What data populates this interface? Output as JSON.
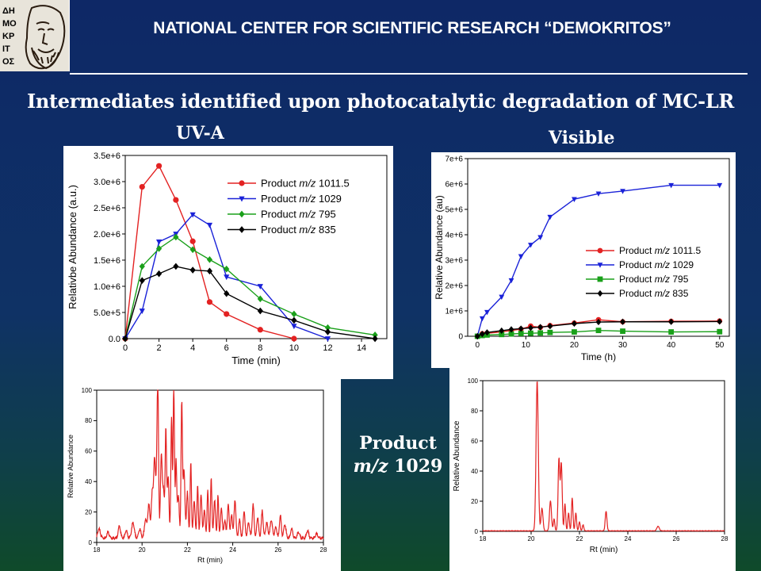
{
  "header": {
    "title": "NATIONAL CENTER FOR SCIENTIFIC RESEARCH “DEMOKRITOS”",
    "logo_text": "ΔΗΜΟΚΡΙΤΟΣ"
  },
  "slide": {
    "title": "Intermediates identified upon photocatalytic degradation of MC-LR",
    "label_uva": "UV-A",
    "label_visible": "Visible",
    "product_label_line1": "Product",
    "product_label_line2_prefix": "m/z",
    "product_label_line2_value": "1029"
  },
  "chart_data": [
    {
      "type": "line",
      "panel": "UV-A",
      "xlabel": "Time (min)",
      "ylabel": "Relativbe Abundance (a.u.)",
      "xlim": [
        0,
        15.5
      ],
      "ylim": [
        0,
        3500000
      ],
      "xticks": [
        0,
        2,
        4,
        6,
        8,
        10,
        12,
        14
      ],
      "xtick_labels": [
        "0",
        "2",
        "4",
        "6",
        "8",
        "10",
        "12",
        "14"
      ],
      "yticks": [
        0,
        500000,
        1000000,
        1500000,
        2000000,
        2500000,
        3000000,
        3500000
      ],
      "ytick_labels": [
        "0.0",
        "5.0e+5",
        "1.0e+6",
        "1.5e+6",
        "2.0e+6",
        "2.5e+6",
        "3.0e+6",
        "3.5e+6"
      ],
      "legend_position": "top-right",
      "series": [
        {
          "name_prefix": "Product ",
          "name_italic": "m/z",
          "name_suffix": " 1011.5",
          "color": "#e32222",
          "marker": "circle",
          "x": [
            0,
            1,
            2,
            3,
            4,
            5,
            6,
            8,
            10
          ],
          "y": [
            0,
            2900000,
            3300000,
            2650000,
            1860000,
            700000,
            470000,
            170000,
            0
          ]
        },
        {
          "name_prefix": "Product ",
          "name_italic": "m/z",
          "name_suffix": " 1029",
          "color": "#1a22d8",
          "marker": "triangle-down",
          "x": [
            0,
            1,
            2,
            3,
            4,
            5,
            6,
            8,
            10,
            12
          ],
          "y": [
            0,
            530000,
            1850000,
            2000000,
            2370000,
            2170000,
            1180000,
            1000000,
            240000,
            0
          ]
        },
        {
          "name_prefix": "Product ",
          "name_italic": "m/z",
          "name_suffix": " 795",
          "color": "#1aa01a",
          "marker": "diamond",
          "x": [
            0,
            1,
            2,
            3,
            4,
            5,
            6,
            8,
            10,
            12,
            14.8
          ],
          "y": [
            0,
            1380000,
            1720000,
            1940000,
            1700000,
            1510000,
            1330000,
            760000,
            470000,
            210000,
            70000
          ]
        },
        {
          "name_prefix": "Product ",
          "name_italic": "m/z",
          "name_suffix": " 835",
          "color": "#000000",
          "marker": "diamond",
          "x": [
            0,
            1,
            2,
            3,
            4,
            5,
            6,
            8,
            10,
            12,
            14.8
          ],
          "y": [
            0,
            1110000,
            1240000,
            1380000,
            1310000,
            1290000,
            860000,
            530000,
            350000,
            130000,
            0
          ]
        }
      ]
    },
    {
      "type": "line",
      "panel": "Visible",
      "xlabel": "Time (h)",
      "ylabel": "Relative Abundance (au)",
      "xlim": [
        -2,
        52
      ],
      "ylim": [
        0,
        7000000
      ],
      "xticks": [
        0,
        10,
        20,
        30,
        40,
        50
      ],
      "xtick_labels": [
        "0",
        "10",
        "20",
        "30",
        "40",
        "50"
      ],
      "yticks": [
        0,
        1000000,
        2000000,
        3000000,
        4000000,
        5000000,
        6000000,
        7000000
      ],
      "ytick_labels": [
        "0",
        "1e+6",
        "2e+6",
        "3e+6",
        "4e+6",
        "5e+6",
        "6e+6",
        "7e+6"
      ],
      "legend_position": "bottom-right",
      "series": [
        {
          "name_prefix": "Product ",
          "name_italic": "m/z",
          "name_suffix": " 1011.5",
          "color": "#e32222",
          "marker": "circle",
          "x": [
            0,
            1,
            2,
            5,
            7,
            9,
            11,
            13,
            15,
            20,
            25,
            30,
            40,
            50
          ],
          "y": [
            0,
            100000,
            120000,
            170000,
            230000,
            280000,
            400000,
            350000,
            420000,
            520000,
            650000,
            570000,
            590000,
            600000
          ]
        },
        {
          "name_prefix": "Product ",
          "name_italic": "m/z",
          "name_suffix": " 1029",
          "color": "#1a22d8",
          "marker": "triangle-down",
          "x": [
            0,
            1,
            2,
            5,
            7,
            9,
            11,
            13,
            15,
            20,
            25,
            30,
            40,
            50
          ],
          "y": [
            0,
            700000,
            950000,
            1550000,
            2200000,
            3150000,
            3600000,
            3900000,
            4700000,
            5400000,
            5620000,
            5720000,
            5950000,
            5950000
          ]
        },
        {
          "name_prefix": "Product ",
          "name_italic": "m/z",
          "name_suffix": " 795",
          "color": "#1aa01a",
          "marker": "square",
          "x": [
            0,
            1,
            2,
            5,
            7,
            9,
            11,
            13,
            15,
            20,
            25,
            30,
            40,
            50
          ],
          "y": [
            0,
            30000,
            50000,
            70000,
            90000,
            110000,
            120000,
            130000,
            150000,
            170000,
            230000,
            200000,
            170000,
            180000
          ]
        },
        {
          "name_prefix": "Product ",
          "name_italic": "m/z",
          "name_suffix": " 835",
          "color": "#000000",
          "marker": "diamond",
          "x": [
            0,
            1,
            2,
            5,
            7,
            9,
            11,
            13,
            15,
            20,
            25,
            30,
            40,
            50
          ],
          "y": [
            0,
            90000,
            150000,
            220000,
            270000,
            300000,
            330000,
            360000,
            400000,
            500000,
            560000,
            570000,
            570000,
            580000
          ]
        }
      ]
    },
    {
      "type": "line",
      "panel": "chromatogram-left",
      "xlabel": "Rt (min)",
      "ylabel": "Relative Abundance",
      "xlim": [
        18,
        28
      ],
      "ylim": [
        0,
        100
      ],
      "xticks": [
        18,
        20,
        22,
        24,
        26,
        28
      ],
      "xtick_labels": [
        "18",
        "20",
        "22",
        "24",
        "26",
        "28"
      ],
      "yticks": [
        0,
        20,
        40,
        60,
        80,
        100
      ],
      "ytick_labels": [
        "0",
        "20",
        "40",
        "60",
        "80",
        "100"
      ],
      "series": [
        {
          "color": "#e32222",
          "peaks": [
            [
              18.1,
              6,
              0.06
            ],
            [
              18.5,
              4,
              0.05
            ],
            [
              19.0,
              8,
              0.05
            ],
            [
              19.3,
              5,
              0.05
            ],
            [
              19.6,
              10,
              0.06
            ],
            [
              19.9,
              6,
              0.05
            ],
            [
              20.15,
              12,
              0.05
            ],
            [
              20.3,
              22,
              0.05
            ],
            [
              20.45,
              30,
              0.04
            ],
            [
              20.55,
              50,
              0.04
            ],
            [
              20.65,
              40,
              0.04
            ],
            [
              20.7,
              90,
              0.03
            ],
            [
              20.85,
              55,
              0.04
            ],
            [
              20.95,
              30,
              0.04
            ],
            [
              21.05,
              70,
              0.03
            ],
            [
              21.15,
              40,
              0.04
            ],
            [
              21.3,
              80,
              0.03
            ],
            [
              21.4,
              100,
              0.03
            ],
            [
              21.5,
              50,
              0.03
            ],
            [
              21.6,
              28,
              0.04
            ],
            [
              21.75,
              88,
              0.03
            ],
            [
              21.85,
              45,
              0.04
            ],
            [
              22.0,
              30,
              0.04
            ],
            [
              22.15,
              50,
              0.03
            ],
            [
              22.3,
              25,
              0.04
            ],
            [
              22.45,
              35,
              0.03
            ],
            [
              22.6,
              28,
              0.04
            ],
            [
              22.75,
              18,
              0.04
            ],
            [
              22.9,
              32,
              0.03
            ],
            [
              23.05,
              40,
              0.03
            ],
            [
              23.2,
              25,
              0.04
            ],
            [
              23.35,
              28,
              0.03
            ],
            [
              23.5,
              20,
              0.04
            ],
            [
              23.65,
              12,
              0.04
            ],
            [
              23.8,
              22,
              0.04
            ],
            [
              23.95,
              15,
              0.04
            ],
            [
              24.1,
              25,
              0.04
            ],
            [
              24.3,
              12,
              0.04
            ],
            [
              24.5,
              18,
              0.04
            ],
            [
              24.7,
              10,
              0.05
            ],
            [
              24.9,
              22,
              0.04
            ],
            [
              25.1,
              14,
              0.04
            ],
            [
              25.3,
              18,
              0.04
            ],
            [
              25.5,
              10,
              0.05
            ],
            [
              25.7,
              12,
              0.05
            ],
            [
              25.9,
              7,
              0.05
            ],
            [
              26.1,
              15,
              0.04
            ],
            [
              26.3,
              9,
              0.05
            ],
            [
              26.6,
              6,
              0.05
            ],
            [
              26.9,
              4,
              0.05
            ],
            [
              27.3,
              5,
              0.05
            ],
            [
              27.7,
              3,
              0.05
            ]
          ],
          "baseline": 4
        }
      ]
    },
    {
      "type": "line",
      "panel": "chromatogram-right",
      "xlabel": "Rt (min)",
      "ylabel": "Relative Abundance",
      "xlim": [
        18,
        28
      ],
      "ylim": [
        0,
        100
      ],
      "xticks": [
        18,
        20,
        22,
        24,
        26,
        28
      ],
      "xtick_labels": [
        "18",
        "20",
        "22",
        "24",
        "26",
        "28"
      ],
      "yticks": [
        0,
        20,
        40,
        60,
        80,
        100
      ],
      "ytick_labels": [
        "0",
        "20",
        "40",
        "60",
        "80",
        "100"
      ],
      "series": [
        {
          "color": "#e32222",
          "peaks": [
            [
              20.25,
              100,
              0.045
            ],
            [
              20.45,
              15,
              0.04
            ],
            [
              20.8,
              20,
              0.04
            ],
            [
              20.95,
              8,
              0.03
            ],
            [
              21.15,
              48,
              0.035
            ],
            [
              21.25,
              45,
              0.035
            ],
            [
              21.4,
              18,
              0.03
            ],
            [
              21.55,
              12,
              0.03
            ],
            [
              21.7,
              22,
              0.03
            ],
            [
              21.85,
              12,
              0.03
            ],
            [
              22.0,
              6,
              0.03
            ],
            [
              22.15,
              4,
              0.03
            ],
            [
              23.1,
              13,
              0.035
            ],
            [
              25.25,
              3,
              0.05
            ]
          ],
          "baseline": 0.5
        }
      ]
    }
  ]
}
